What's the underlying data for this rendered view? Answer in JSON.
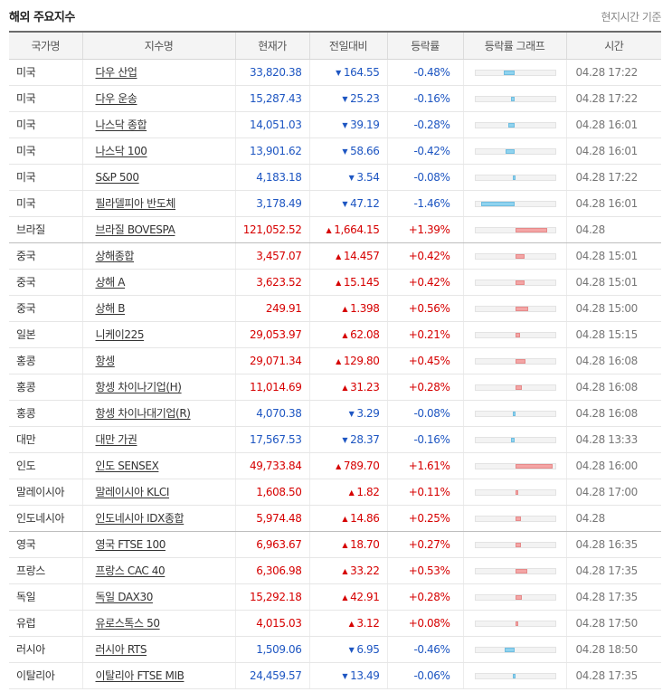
{
  "header": {
    "title": "해외 주요지수",
    "note": "현지시간 기준"
  },
  "columns": [
    "국가명",
    "지수명",
    "현재가",
    "전일대비",
    "등락률",
    "등락률 그래프",
    "시간"
  ],
  "rows": [
    {
      "country": "미국",
      "name": "다우 산업",
      "price": "33,820.38",
      "change": "164.55",
      "dir": "down",
      "pct": "-0.48%",
      "pct_value": -0.48,
      "time": "04.28 17:22"
    },
    {
      "country": "미국",
      "name": "다우 운송",
      "price": "15,287.43",
      "change": "25.23",
      "dir": "down",
      "pct": "-0.16%",
      "pct_value": -0.16,
      "time": "04.28 17:22"
    },
    {
      "country": "미국",
      "name": "나스닥 종합",
      "price": "14,051.03",
      "change": "39.19",
      "dir": "down",
      "pct": "-0.28%",
      "pct_value": -0.28,
      "time": "04.28 16:01"
    },
    {
      "country": "미국",
      "name": "나스닥 100",
      "price": "13,901.62",
      "change": "58.66",
      "dir": "down",
      "pct": "-0.42%",
      "pct_value": -0.42,
      "time": "04.28 16:01"
    },
    {
      "country": "미국",
      "name": "S&P 500",
      "price": "4,183.18",
      "change": "3.54",
      "dir": "down",
      "pct": "-0.08%",
      "pct_value": -0.08,
      "time": "04.28 17:22"
    },
    {
      "country": "미국",
      "name": "필라델피아 반도체",
      "price": "3,178.49",
      "change": "47.12",
      "dir": "down",
      "pct": "-1.46%",
      "pct_value": -1.46,
      "time": "04.28 16:01"
    },
    {
      "country": "브라질",
      "name": "브라질 BOVESPA",
      "price": "121,052.52",
      "change": "1,664.15",
      "dir": "up",
      "pct": "+1.39%",
      "pct_value": 1.39,
      "time": "04.28",
      "group_end": true
    },
    {
      "country": "중국",
      "name": "상해종합",
      "price": "3,457.07",
      "change": "14.457",
      "dir": "up",
      "pct": "+0.42%",
      "pct_value": 0.42,
      "time": "04.28 15:01"
    },
    {
      "country": "중국",
      "name": "상해 A",
      "price": "3,623.52",
      "change": "15.145",
      "dir": "up",
      "pct": "+0.42%",
      "pct_value": 0.42,
      "time": "04.28 15:01"
    },
    {
      "country": "중국",
      "name": "상해 B",
      "price": "249.91",
      "change": "1.398",
      "dir": "up",
      "pct": "+0.56%",
      "pct_value": 0.56,
      "time": "04.28 15:00"
    },
    {
      "country": "일본",
      "name": "니케이225",
      "price": "29,053.97",
      "change": "62.08",
      "dir": "up",
      "pct": "+0.21%",
      "pct_value": 0.21,
      "time": "04.28 15:15"
    },
    {
      "country": "홍콩",
      "name": "항셍",
      "price": "29,071.34",
      "change": "129.80",
      "dir": "up",
      "pct": "+0.45%",
      "pct_value": 0.45,
      "time": "04.28 16:08"
    },
    {
      "country": "홍콩",
      "name": "항셍 차이나기업(H)",
      "price": "11,014.69",
      "change": "31.23",
      "dir": "up",
      "pct": "+0.28%",
      "pct_value": 0.28,
      "time": "04.28 16:08"
    },
    {
      "country": "홍콩",
      "name": "항셍 차이나대기업(R)",
      "price": "4,070.38",
      "change": "3.29",
      "dir": "down",
      "pct": "-0.08%",
      "pct_value": -0.08,
      "time": "04.28 16:08"
    },
    {
      "country": "대만",
      "name": "대만 가권",
      "price": "17,567.53",
      "change": "28.37",
      "dir": "down",
      "pct": "-0.16%",
      "pct_value": -0.16,
      "time": "04.28 13:33"
    },
    {
      "country": "인도",
      "name": "인도 SENSEX",
      "price": "49,733.84",
      "change": "789.70",
      "dir": "up",
      "pct": "+1.61%",
      "pct_value": 1.61,
      "time": "04.28 16:00"
    },
    {
      "country": "말레이시아",
      "name": "말레이시아 KLCI",
      "price": "1,608.50",
      "change": "1.82",
      "dir": "up",
      "pct": "+0.11%",
      "pct_value": 0.11,
      "time": "04.28 17:00"
    },
    {
      "country": "인도네시아",
      "name": "인도네시아 IDX종합",
      "price": "5,974.48",
      "change": "14.86",
      "dir": "up",
      "pct": "+0.25%",
      "pct_value": 0.25,
      "time": "04.28",
      "group_end": true
    },
    {
      "country": "영국",
      "name": "영국 FTSE 100",
      "price": "6,963.67",
      "change": "18.70",
      "dir": "up",
      "pct": "+0.27%",
      "pct_value": 0.27,
      "time": "04.28 16:35"
    },
    {
      "country": "프랑스",
      "name": "프랑스 CAC 40",
      "price": "6,306.98",
      "change": "33.22",
      "dir": "up",
      "pct": "+0.53%",
      "pct_value": 0.53,
      "time": "04.28 17:35"
    },
    {
      "country": "독일",
      "name": "독일 DAX30",
      "price": "15,292.18",
      "change": "42.91",
      "dir": "up",
      "pct": "+0.28%",
      "pct_value": 0.28,
      "time": "04.28 17:35"
    },
    {
      "country": "유럽",
      "name": "유로스톡스 50",
      "price": "4,015.03",
      "change": "3.12",
      "dir": "up",
      "pct": "+0.08%",
      "pct_value": 0.08,
      "time": "04.28 17:50"
    },
    {
      "country": "러시아",
      "name": "러시아 RTS",
      "price": "1,509.06",
      "change": "6.95",
      "dir": "down",
      "pct": "-0.46%",
      "pct_value": -0.46,
      "time": "04.28 18:50"
    },
    {
      "country": "이탈리아",
      "name": "이탈리아 FTSE MIB",
      "price": "24,459.57",
      "change": "13.49",
      "dir": "down",
      "pct": "-0.06%",
      "pct_value": -0.06,
      "time": "04.28 17:35"
    }
  ],
  "icons": {
    "up": "triangle-up-icon",
    "down": "triangle-down-icon"
  },
  "colors": {
    "up": "#d60000",
    "down": "#1e56c2",
    "bar_up": "#f4a5a5",
    "bar_down": "#8fd3ef"
  }
}
